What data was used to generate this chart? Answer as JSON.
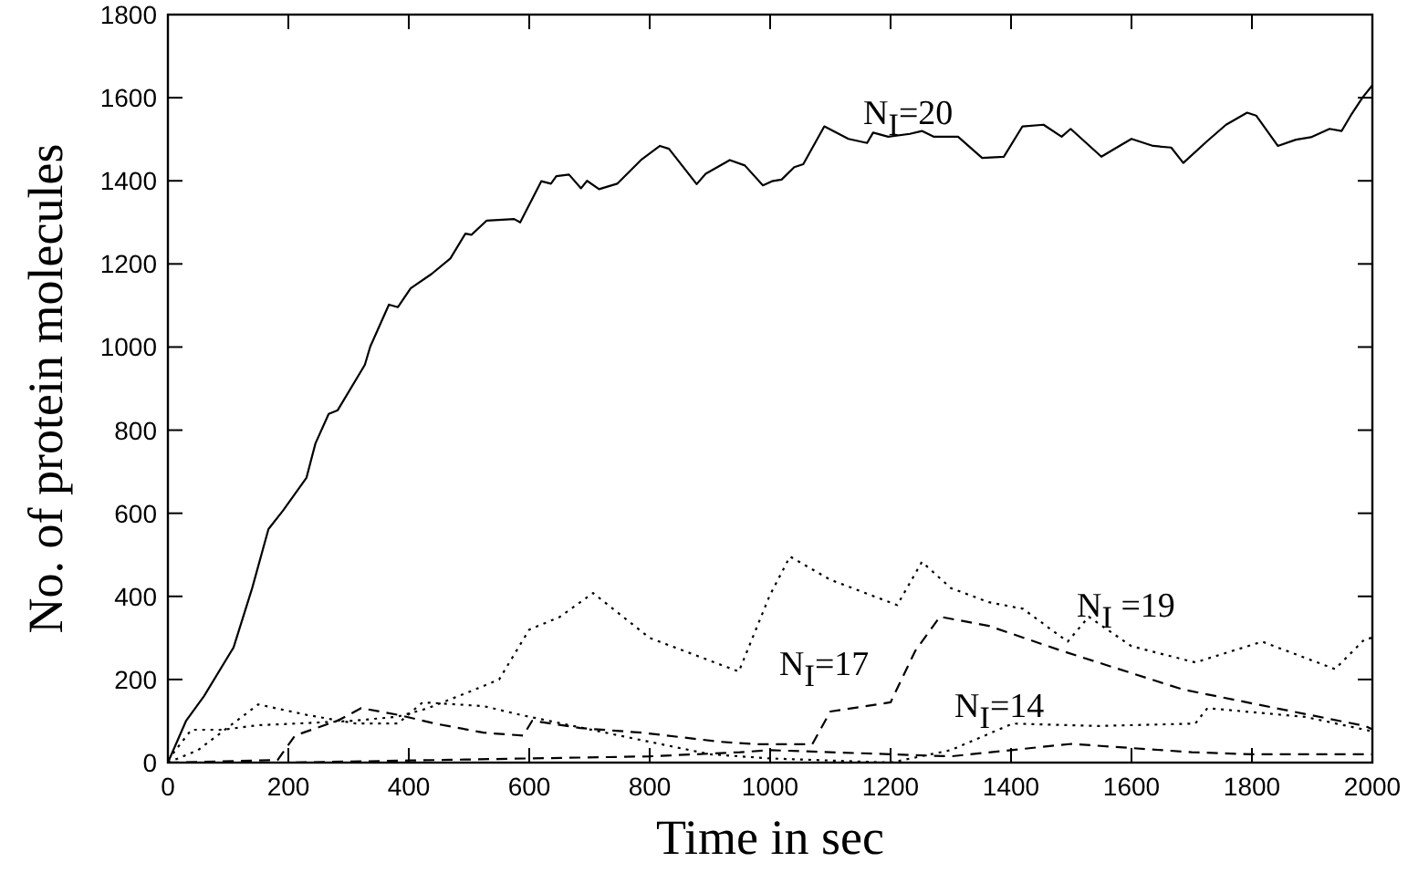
{
  "chart_data": {
    "type": "line",
    "xlabel": "Time in sec",
    "ylabel": "No. of protein molecules",
    "xlim": [
      0,
      2000
    ],
    "xticks": [
      0,
      200,
      400,
      600,
      800,
      1000,
      1200,
      1400,
      1600,
      1800,
      2000
    ],
    "ylim": [
      0,
      1800
    ],
    "yticks": [
      0,
      200,
      400,
      600,
      800,
      1000,
      1200,
      1400,
      1600,
      1800
    ],
    "grid": false,
    "marker": "none",
    "series": [
      {
        "name": "N$_{I}$=20",
        "color": "#000000",
        "line_style": "solid",
        "x": [
          0,
          30,
          60,
          109,
          140,
          167,
          191,
          230,
          245,
          267,
          282,
          327,
          336,
          367,
          382,
          403,
          438,
          469,
          494,
          504,
          529,
          575,
          585,
          620,
          636,
          645,
          666,
          686,
          696,
          716,
          746,
          787,
          817,
          832,
          878,
          893,
          933,
          958,
          988,
          1003,
          1019,
          1040,
          1055,
          1090,
          1130,
          1161,
          1171,
          1196,
          1232,
          1252,
          1272,
          1312,
          1352,
          1388,
          1419,
          1454,
          1484,
          1499,
          1550,
          1580,
          1600,
          1636,
          1666,
          1686,
          1726,
          1757,
          1792,
          1807,
          1843,
          1873,
          1898,
          1929,
          1949,
          1964,
          1984,
          2000
        ],
        "values": [
          0,
          100,
          160,
          277,
          420,
          562,
          606,
          685,
          768,
          839,
          848,
          957,
          1001,
          1102,
          1096,
          1141,
          1176,
          1213,
          1273,
          1270,
          1304,
          1308,
          1300,
          1399,
          1393,
          1411,
          1415,
          1382,
          1400,
          1380,
          1393,
          1452,
          1484,
          1477,
          1392,
          1417,
          1450,
          1437,
          1389,
          1399,
          1403,
          1433,
          1440,
          1531,
          1501,
          1491,
          1516,
          1506,
          1513,
          1520,
          1506,
          1506,
          1455,
          1458,
          1531,
          1535,
          1506,
          1525,
          1458,
          1484,
          1501,
          1484,
          1480,
          1443,
          1496,
          1535,
          1564,
          1557,
          1484,
          1499,
          1505,
          1525,
          1520,
          1557,
          1601,
          1630
        ]
      },
      {
        "name": "N$_{I}$ =19",
        "color": "#000000",
        "line_style": "dotted",
        "x": [
          0,
          39,
          90,
          150,
          230,
          300,
          380,
          430,
          500,
          550,
          600,
          650,
          706,
          800,
          948,
          999,
          1033,
          1100,
          1211,
          1252,
          1300,
          1363,
          1420,
          1494,
          1529,
          1600,
          1706,
          1817,
          1938,
          1988,
          2000
        ],
        "values": [
          6,
          79,
          79,
          90,
          95,
          100,
          110,
          130,
          170,
          200,
          320,
          350,
          408,
          300,
          219,
          401,
          496,
          440,
          379,
          483,
          420,
          386,
          370,
          291,
          351,
          280,
          241,
          291,
          225,
          298,
          300
        ]
      },
      {
        "name": "N$_{I}$=17",
        "color": "#000000",
        "line_style": "dashed",
        "x": [
          0,
          182,
          211,
          282,
          321,
          382,
          443,
          524,
          590,
          605,
          685,
          787,
          918,
          979,
          1070,
          1100,
          1200,
          1241,
          1282,
          1363,
          1484,
          1685,
          1988,
          2000
        ],
        "values": [
          0,
          6,
          65,
          101,
          131,
          115,
          94,
          72,
          65,
          101,
          83,
          72,
          50,
          44,
          44,
          123,
          145,
          269,
          351,
          329,
          269,
          176,
          88,
          80
        ]
      },
      {
        "name": "N$_{I}$=14",
        "color": "#000000",
        "line_style": "dotted",
        "x": [
          0,
          50,
          150,
          230,
          312,
          382,
          423,
          524,
          585,
          700,
          800,
          900,
          1000,
          1100,
          1200,
          1300,
          1403,
          1544,
          1706,
          1726,
          1888,
          1988,
          2000
        ],
        "values": [
          0,
          30,
          140,
          115,
          94,
          94,
          145,
          136,
          115,
          80,
          50,
          20,
          10,
          5,
          0,
          30,
          94,
          88,
          94,
          131,
          110,
          79,
          75
        ]
      },
      {
        "color": "#000000",
        "line_style": "dashed",
        "x": [
          0,
          200,
          400,
          600,
          800,
          950,
          1000,
          1200,
          1300,
          1400,
          1500,
          1600,
          1700,
          1800,
          1900,
          2000
        ],
        "values": [
          0,
          0,
          5,
          10,
          15,
          25,
          30,
          20,
          15,
          30,
          45,
          35,
          25,
          20,
          20,
          20
        ]
      }
    ]
  }
}
